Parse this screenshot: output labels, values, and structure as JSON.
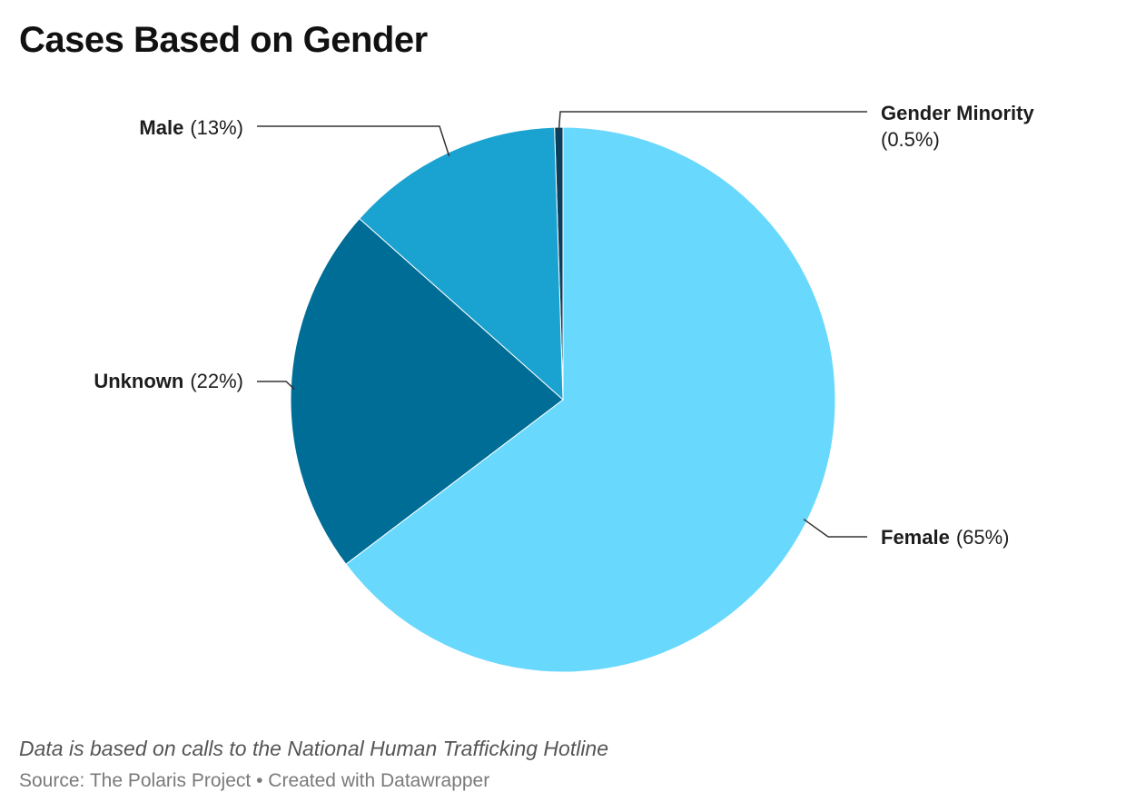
{
  "chart_data": {
    "type": "pie",
    "title": "Cases Based on Gender",
    "slices": [
      {
        "name": "Gender Minority",
        "value": 0.5,
        "label_value": "(0.5%)",
        "color": "#0a3f5c"
      },
      {
        "name": "Female",
        "value": 65,
        "label_value": "(65%)",
        "color": "#69d8fd"
      },
      {
        "name": "Unknown",
        "value": 22,
        "label_value": "(22%)",
        "color": "#006d96"
      },
      {
        "name": "Male",
        "value": 13,
        "label_value": "(13%)",
        "color": "#1aa3d0"
      }
    ],
    "notes": "Data is based on calls to the National Human Trafficking Hotline",
    "footer": {
      "source": "Source: The Polaris Project",
      "separator": "•",
      "credit": "Created with Datawrapper"
    }
  }
}
